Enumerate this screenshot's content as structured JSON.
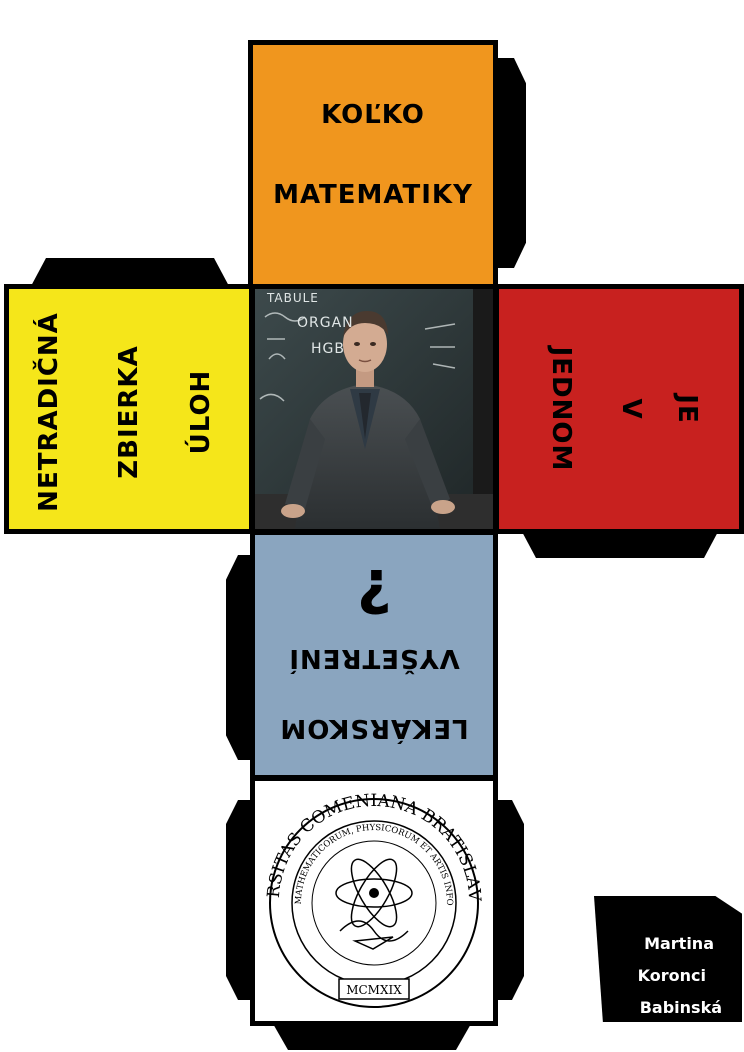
{
  "faces": {
    "top": {
      "line1": "KOĽKO",
      "line2": "MATEMATIKY",
      "color": "#f0961e"
    },
    "left": {
      "line1": "NETRADIČNÁ",
      "line2": "ZBIERKA",
      "line3": "ÚLOH",
      "color": "#f5e61a"
    },
    "right": {
      "line1": "JE",
      "line2": "V",
      "line3": "JEDNOM",
      "color": "#c8211f"
    },
    "below": {
      "line1": "?",
      "line2": "VYŠETRENÍ",
      "line3": "LEKÁRSKOM",
      "color": "#8aa5bf"
    },
    "bottom": {
      "seal_ring_text": "UNIVERSITAS COMENIANA BRATISLAVENSIS",
      "seal_inner_text": "FACULTAS MATHEMATICORUM, PHYSICORUM ET ARTIS INFORMATICAE",
      "seal_year": "MCMXIX"
    },
    "center": {
      "photo_icon": "teacher-at-blackboard-photo",
      "board_text_1": "TABULE",
      "board_text_2": "ORGAN",
      "board_text_3": "HGB"
    }
  },
  "author": {
    "line1": "Martina",
    "line2": "Koronci",
    "line3": "Babinská"
  }
}
